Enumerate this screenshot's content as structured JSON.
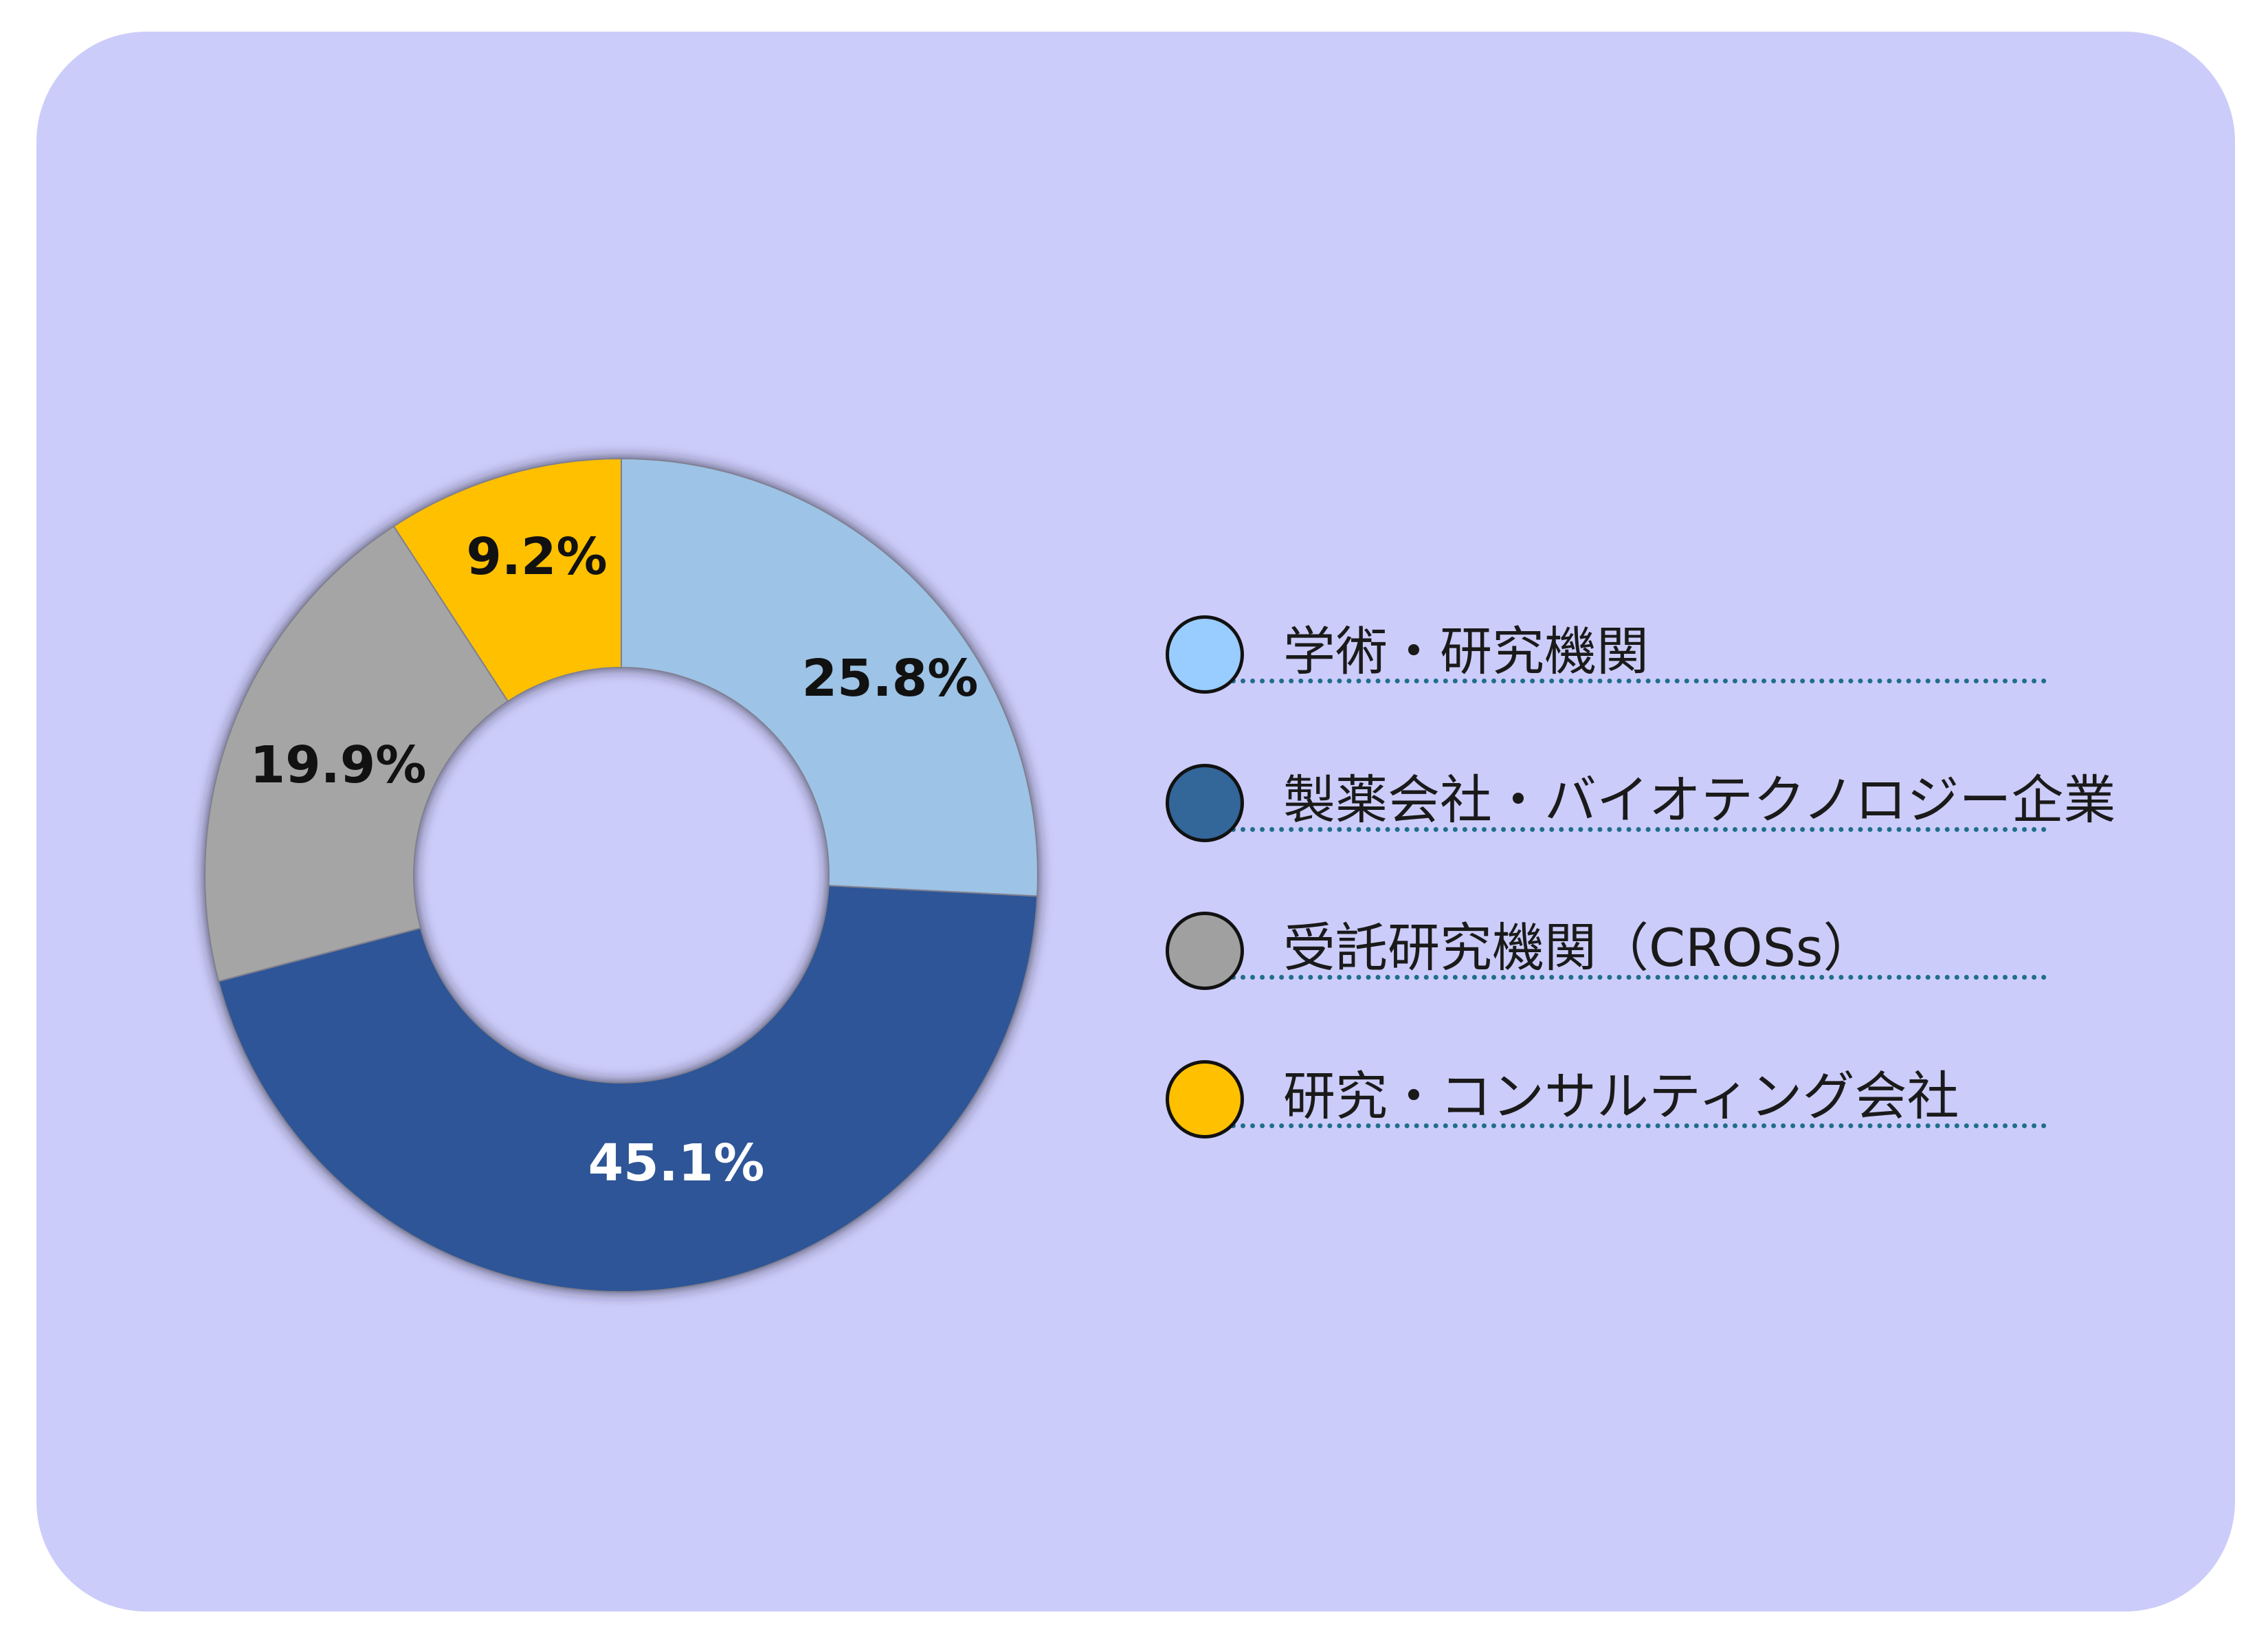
{
  "chart_data": {
    "type": "pie",
    "donut": true,
    "clockwise": true,
    "categories": [
      "学術・研究機関",
      "製薬会社・バイオテクノロジー企業",
      "受託研究機関（CROSs）",
      "研究・コンサルティング会社"
    ],
    "values": [
      25.8,
      45.1,
      19.9,
      9.2
    ],
    "data_labels": [
      "25.8%",
      "45.1%",
      "19.9%",
      "9.2%"
    ],
    "slice_colors": [
      "#9DC3E6",
      "#2F5597",
      "#A5A5A5",
      "#FFC000"
    ],
    "legend_colors": [
      "#99CCFF",
      "#336699",
      "#A0A0A0",
      "#FFC000"
    ],
    "legend_placement": "right"
  },
  "colors": {
    "panel_background": "#CCCCFA",
    "legend_rule": "#1F6E8C"
  }
}
